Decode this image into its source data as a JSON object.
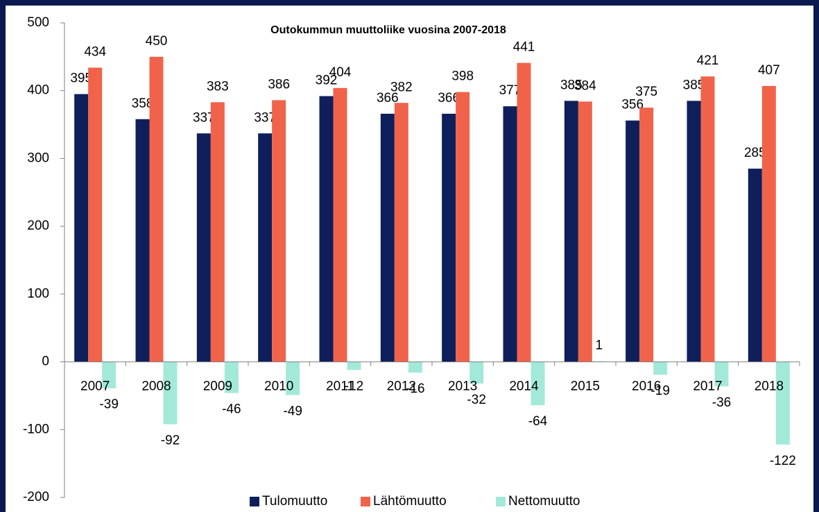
{
  "chart_data": {
    "type": "bar",
    "title": "Outokummun muuttoliike vuosina 2007-2018",
    "categories": [
      "2007",
      "2008",
      "2009",
      "2010",
      "2011",
      "2012",
      "2013",
      "2014",
      "2015",
      "2016",
      "2017",
      "2018"
    ],
    "series": [
      {
        "name": "Tulomuutto",
        "color": "#0e1f5b",
        "values": [
          395,
          358,
          337,
          337,
          392,
          366,
          366,
          377,
          385,
          356,
          385,
          285
        ]
      },
      {
        "name": "Lähtömuutto",
        "color": "#f0634a",
        "values": [
          434,
          450,
          383,
          386,
          404,
          382,
          398,
          441,
          384,
          375,
          421,
          407
        ]
      },
      {
        "name": "Nettomuutto",
        "color": "#a3e9da",
        "values": [
          -39,
          -92,
          -46,
          -49,
          -12,
          -16,
          -32,
          -64,
          1,
          -19,
          -36,
          -122
        ]
      }
    ],
    "ylim": [
      -200,
      500
    ],
    "yticks": [
      -200,
      -100,
      0,
      100,
      200,
      300,
      400,
      500
    ],
    "grid": false,
    "legend": "bottom"
  }
}
